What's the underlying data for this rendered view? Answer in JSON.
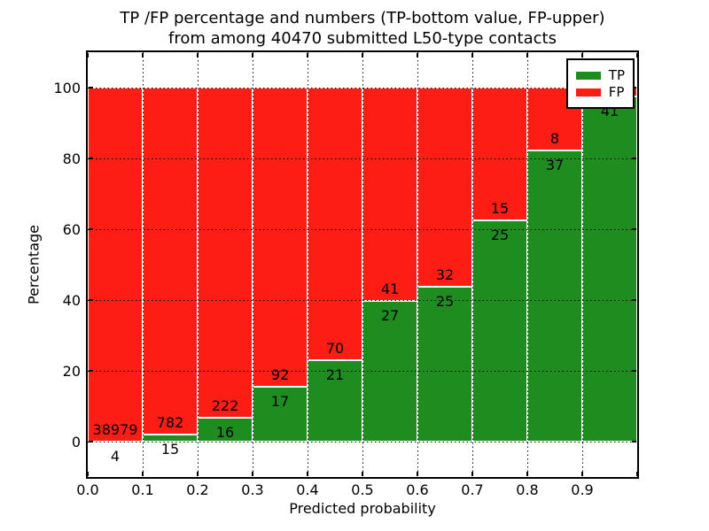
{
  "figure": {
    "title_line1": "TP /FP percentage and numbers (TP-bottom value, FP-upper)",
    "title_line2": "from among 40470 submitted L50-type contacts"
  },
  "chart_data": {
    "type": "bar",
    "stacked": true,
    "title": "TP /FP percentage and numbers (TP-bottom value, FP-upper) from among 40470 submitted L50-type contacts",
    "xlabel": "Predicted probability",
    "ylabel": "Percentage",
    "xlim": [
      0.0,
      1.0
    ],
    "ylim": [
      -10,
      110
    ],
    "bin_width": 0.1,
    "grid": "dotted",
    "legend_position": "upper right",
    "xtick_values": [
      0.0,
      0.1,
      0.2,
      0.3,
      0.4,
      0.5,
      0.6,
      0.7,
      0.8,
      0.9
    ],
    "xtick_labels": [
      "0.0",
      "0.1",
      "0.2",
      "0.3",
      "0.4",
      "0.5",
      "0.6",
      "0.7",
      "0.8",
      "0.9"
    ],
    "ytick_values": [
      0,
      20,
      40,
      60,
      80,
      100
    ],
    "ytick_labels": [
      "0",
      "20",
      "40",
      "60",
      "80",
      "100"
    ],
    "series": [
      {
        "name": "TP",
        "color": "#1e8c1e"
      },
      {
        "name": "FP",
        "color": "#fc1e14"
      }
    ],
    "bins": [
      {
        "x_start": 0.0,
        "tp_count": 4,
        "fp_count": 38979,
        "tp_pct": 0.01,
        "tp_label": "4",
        "fp_label": "38979"
      },
      {
        "x_start": 0.1,
        "tp_count": 15,
        "fp_count": 782,
        "tp_pct": 1.88,
        "tp_label": "15",
        "fp_label": "782"
      },
      {
        "x_start": 0.2,
        "tp_count": 16,
        "fp_count": 222,
        "tp_pct": 6.72,
        "tp_label": "16",
        "fp_label": "222"
      },
      {
        "x_start": 0.3,
        "tp_count": 17,
        "fp_count": 92,
        "tp_pct": 15.6,
        "tp_label": "17",
        "fp_label": "92"
      },
      {
        "x_start": 0.4,
        "tp_count": 21,
        "fp_count": 70,
        "tp_pct": 23.08,
        "tp_label": "21",
        "fp_label": "70"
      },
      {
        "x_start": 0.5,
        "tp_count": 27,
        "fp_count": 41,
        "tp_pct": 39.71,
        "tp_label": "27",
        "fp_label": "41"
      },
      {
        "x_start": 0.6,
        "tp_count": 25,
        "fp_count": 32,
        "tp_pct": 43.86,
        "tp_label": "25",
        "fp_label": "32"
      },
      {
        "x_start": 0.7,
        "tp_count": 25,
        "fp_count": 15,
        "tp_pct": 62.5,
        "tp_label": "25",
        "fp_label": "15"
      },
      {
        "x_start": 0.8,
        "tp_count": 37,
        "fp_count": 8,
        "tp_pct": 82.22,
        "tp_label": "37",
        "fp_label": "8"
      },
      {
        "x_start": 0.9,
        "tp_count": 41,
        "fp_count": null,
        "tp_pct": 97.6,
        "tp_label": "41",
        "fp_label": ""
      }
    ]
  }
}
